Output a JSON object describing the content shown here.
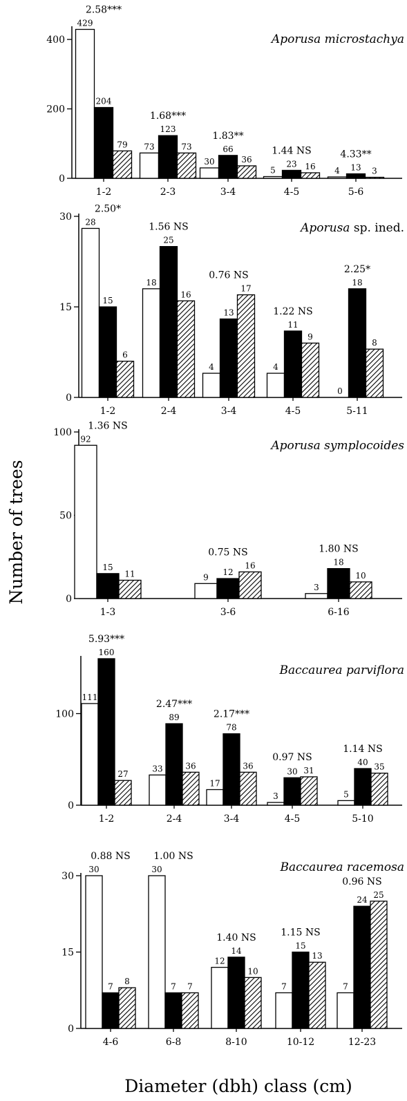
{
  "ylabel": "Number of trees",
  "xlabel": "Diameter (dbh) class (cm)",
  "series_styles": [
    "open",
    "solid",
    "hatched"
  ],
  "chart_data": [
    {
      "type": "bar",
      "title_italic": "Aporusa microstachya",
      "title_plain": "",
      "categories": [
        "1-2",
        "2-3",
        "3-4",
        "4-5",
        "5-6"
      ],
      "series": [
        {
          "values": [
            429,
            73,
            30,
            5,
            4
          ]
        },
        {
          "values": [
            204,
            123,
            66,
            23,
            13
          ]
        },
        {
          "values": [
            79,
            73,
            36,
            16,
            3
          ]
        }
      ],
      "ratio_labels": [
        "2.58***",
        "1.68***",
        "1.83**",
        "1.44 NS",
        "4.33**"
      ],
      "yticks": [
        0,
        200,
        400
      ],
      "ylim": [
        0,
        430
      ]
    },
    {
      "type": "bar",
      "title_italic": "Aporusa",
      "title_plain": " sp. ined.",
      "categories": [
        "1-2",
        "2-4",
        "3-4",
        "4-5",
        "5-11"
      ],
      "series": [
        {
          "values": [
            28,
            18,
            4,
            4,
            0
          ]
        },
        {
          "values": [
            15,
            25,
            13,
            11,
            18
          ]
        },
        {
          "values": [
            6,
            16,
            17,
            9,
            8
          ]
        }
      ],
      "ratio_labels": [
        "2.50*",
        "1.56 NS",
        "0.76 NS",
        "1.22 NS",
        "2.25*"
      ],
      "yticks": [
        0,
        15,
        30
      ],
      "ylim": [
        0,
        30
      ]
    },
    {
      "type": "bar",
      "title_italic": "Aporusa symplocoides",
      "title_plain": "",
      "categories": [
        "1-3",
        "3-6",
        "6-16"
      ],
      "series": [
        {
          "values": [
            92,
            9,
            3
          ]
        },
        {
          "values": [
            15,
            12,
            18
          ]
        },
        {
          "values": [
            11,
            16,
            10
          ]
        }
      ],
      "ratio_labels": [
        "1.36 NS",
        "0.75 NS",
        "1.80 NS"
      ],
      "yticks": [
        0,
        50,
        100
      ],
      "ylim": [
        0,
        100
      ]
    },
    {
      "type": "bar",
      "title_italic": "Baccaurea parviflora",
      "title_plain": "",
      "categories": [
        "1-2",
        "2-4",
        "3-4",
        "4-5",
        "5-10"
      ],
      "series": [
        {
          "values": [
            111,
            33,
            17,
            3,
            5
          ]
        },
        {
          "values": [
            160,
            89,
            78,
            30,
            40
          ]
        },
        {
          "values": [
            27,
            36,
            36,
            31,
            35
          ]
        }
      ],
      "ratio_labels": [
        "5.93***",
        "2.47***",
        "2.17***",
        "0.97 NS",
        "1.14 NS"
      ],
      "yticks": [
        0,
        100
      ],
      "ylim": [
        0,
        160
      ]
    },
    {
      "type": "bar",
      "title_italic": "Baccaurea racemosa",
      "title_plain": "",
      "categories": [
        "4-6",
        "6-8",
        "8-10",
        "10-12",
        "12-23"
      ],
      "series": [
        {
          "values": [
            30,
            30,
            12,
            7,
            7
          ]
        },
        {
          "values": [
            7,
            7,
            14,
            15,
            24
          ]
        },
        {
          "values": [
            8,
            7,
            10,
            13,
            25
          ]
        }
      ],
      "ratio_labels": [
        "0.88 NS",
        "1.00 NS",
        "1.40 NS",
        "1.15 NS",
        "0.96 NS"
      ],
      "yticks": [
        0,
        15,
        30
      ],
      "ylim": [
        0,
        30
      ]
    }
  ]
}
